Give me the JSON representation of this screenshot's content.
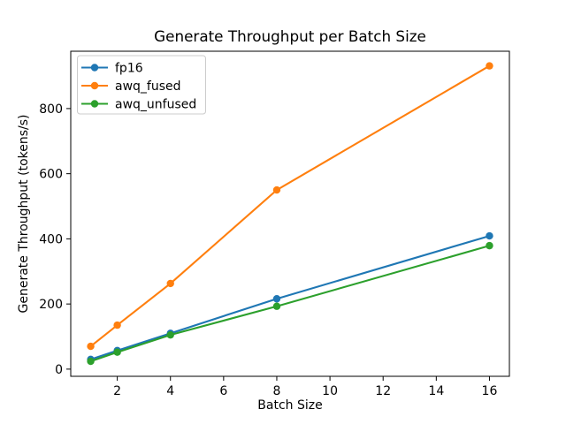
{
  "figure": {
    "background": "#ffffff",
    "axis_color": "#000000",
    "legend_border_color": "#cccccc",
    "legend_background": "#ffffff"
  },
  "chart_data": {
    "type": "line",
    "title": "Generate Throughput per Batch Size",
    "xlabel": "Batch Size",
    "ylabel": "Generate Throughput (tokens/s)",
    "x": [
      1,
      2,
      4,
      8,
      16
    ],
    "series": [
      {
        "name": "fp16",
        "color": "#1f77b4",
        "values": [
          30,
          57,
          110,
          216,
          409
        ]
      },
      {
        "name": "awq_fused",
        "color": "#ff7f0e",
        "values": [
          70,
          135,
          263,
          550,
          931
        ]
      },
      {
        "name": "awq_unfused",
        "color": "#2ca02c",
        "values": [
          24,
          52,
          105,
          193,
          379
        ]
      }
    ],
    "xlim": [
      0.25,
      16.75
    ],
    "ylim": [
      -22,
      976
    ],
    "xticks": [
      2,
      4,
      6,
      8,
      10,
      12,
      14,
      16
    ],
    "yticks": [
      0,
      200,
      400,
      600,
      800
    ],
    "grid": false,
    "marker": "o",
    "legend_position": "upper left"
  }
}
